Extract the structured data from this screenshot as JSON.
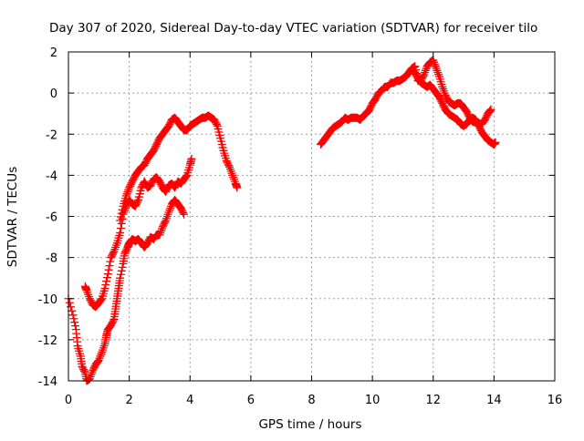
{
  "chart_data": {
    "type": "scatter",
    "title": "Day 307 of 2020, Sidereal Day-to-day VTEC variation (SDTVAR) for receiver tilo",
    "xlabel": "GPS time / hours",
    "ylabel": "SDTVAR / TECUs",
    "xlim": [
      0,
      16
    ],
    "ylim": [
      -14,
      2
    ],
    "xticks": [
      0,
      2,
      4,
      6,
      8,
      10,
      12,
      14,
      16
    ],
    "yticks": [
      -14,
      -12,
      -10,
      -8,
      -6,
      -4,
      -2,
      0,
      2
    ],
    "grid": true,
    "marker": "plus",
    "marker_color": "#ff0000",
    "series": [
      {
        "points": [
          [
            0.0,
            -10.0
          ],
          [
            0.15,
            -10.8
          ],
          [
            0.25,
            -11.5
          ],
          [
            0.3,
            -12.3
          ],
          [
            0.4,
            -12.8
          ],
          [
            0.45,
            -13.3
          ],
          [
            0.55,
            -13.6
          ],
          [
            0.6,
            -14.0
          ],
          [
            0.7,
            -13.9
          ],
          [
            0.8,
            -13.5
          ],
          [
            0.9,
            -13.2
          ],
          [
            1.0,
            -13.0
          ],
          [
            1.1,
            -12.6
          ],
          [
            1.2,
            -12.2
          ],
          [
            1.25,
            -11.8
          ],
          [
            1.3,
            -11.5
          ],
          [
            1.4,
            -11.3
          ],
          [
            1.5,
            -11.0
          ],
          [
            1.55,
            -10.5
          ],
          [
            1.6,
            -10.0
          ],
          [
            1.65,
            -9.5
          ],
          [
            1.7,
            -9.0
          ],
          [
            1.8,
            -8.3
          ],
          [
            1.85,
            -7.8
          ],
          [
            1.95,
            -7.5
          ],
          [
            2.0,
            -7.3
          ],
          [
            2.1,
            -7.1
          ],
          [
            2.2,
            -7.2
          ],
          [
            2.3,
            -7.1
          ],
          [
            2.4,
            -7.3
          ],
          [
            2.5,
            -7.5
          ],
          [
            2.6,
            -7.3
          ],
          [
            2.7,
            -7.0
          ],
          [
            2.8,
            -7.1
          ],
          [
            2.9,
            -6.9
          ],
          [
            3.0,
            -6.9
          ],
          [
            3.1,
            -6.5
          ],
          [
            3.2,
            -6.2
          ],
          [
            3.3,
            -5.8
          ],
          [
            3.4,
            -5.4
          ],
          [
            3.5,
            -5.2
          ],
          [
            3.6,
            -5.4
          ],
          [
            3.7,
            -5.6
          ],
          [
            3.8,
            -5.9
          ]
        ]
      },
      {
        "points": [
          [
            0.55,
            -9.4
          ],
          [
            0.6,
            -9.6
          ],
          [
            0.7,
            -10.0
          ],
          [
            0.8,
            -10.3
          ],
          [
            0.9,
            -10.4
          ],
          [
            1.0,
            -10.2
          ],
          [
            1.1,
            -10.0
          ],
          [
            1.2,
            -9.5
          ],
          [
            1.3,
            -8.8
          ],
          [
            1.4,
            -8.0
          ],
          [
            1.5,
            -7.7
          ],
          [
            1.6,
            -7.3
          ],
          [
            1.7,
            -6.8
          ],
          [
            1.8,
            -5.9
          ],
          [
            1.9,
            -5.5
          ],
          [
            2.0,
            -5.2
          ],
          [
            2.1,
            -5.4
          ],
          [
            2.2,
            -5.5
          ],
          [
            2.3,
            -5.2
          ],
          [
            2.4,
            -4.6
          ],
          [
            2.5,
            -4.3
          ],
          [
            2.6,
            -4.6
          ],
          [
            2.7,
            -4.5
          ],
          [
            2.8,
            -4.2
          ],
          [
            2.9,
            -4.1
          ],
          [
            3.0,
            -4.3
          ],
          [
            3.1,
            -4.6
          ],
          [
            3.2,
            -4.8
          ],
          [
            3.3,
            -4.5
          ],
          [
            3.4,
            -4.4
          ],
          [
            3.5,
            -4.6
          ],
          [
            3.6,
            -4.3
          ],
          [
            3.7,
            -4.4
          ],
          [
            3.8,
            -4.2
          ],
          [
            3.9,
            -4.0
          ],
          [
            4.0,
            -3.5
          ],
          [
            4.05,
            -3.2
          ]
        ]
      },
      {
        "points": [
          [
            1.7,
            -6.2
          ],
          [
            1.8,
            -5.5
          ],
          [
            1.9,
            -5.0
          ],
          [
            2.0,
            -4.6
          ],
          [
            2.1,
            -4.3
          ],
          [
            2.2,
            -4.0
          ],
          [
            2.3,
            -3.8
          ],
          [
            2.4,
            -3.6
          ],
          [
            2.5,
            -3.5
          ],
          [
            2.6,
            -3.2
          ],
          [
            2.7,
            -3.0
          ],
          [
            2.8,
            -2.8
          ],
          [
            2.9,
            -2.5
          ],
          [
            3.0,
            -2.2
          ],
          [
            3.1,
            -2.0
          ],
          [
            3.2,
            -1.8
          ],
          [
            3.3,
            -1.6
          ],
          [
            3.4,
            -1.3
          ],
          [
            3.5,
            -1.2
          ],
          [
            3.6,
            -1.4
          ],
          [
            3.7,
            -1.6
          ],
          [
            3.8,
            -1.8
          ],
          [
            3.9,
            -1.8
          ],
          [
            4.0,
            -1.6
          ],
          [
            4.1,
            -1.5
          ],
          [
            4.2,
            -1.4
          ],
          [
            4.3,
            -1.3
          ],
          [
            4.4,
            -1.2
          ],
          [
            4.5,
            -1.2
          ],
          [
            4.6,
            -1.1
          ],
          [
            4.7,
            -1.2
          ],
          [
            4.8,
            -1.3
          ],
          [
            4.9,
            -1.6
          ],
          [
            5.0,
            -2.2
          ],
          [
            5.1,
            -2.8
          ],
          [
            5.2,
            -3.3
          ],
          [
            5.3,
            -3.6
          ],
          [
            5.4,
            -4.0
          ],
          [
            5.5,
            -4.4
          ],
          [
            5.55,
            -4.6
          ]
        ]
      },
      {
        "points": [
          [
            8.3,
            -2.5
          ],
          [
            8.4,
            -2.3
          ],
          [
            8.5,
            -2.1
          ],
          [
            8.6,
            -1.9
          ],
          [
            8.7,
            -1.7
          ],
          [
            8.8,
            -1.6
          ],
          [
            8.9,
            -1.5
          ],
          [
            9.0,
            -1.4
          ],
          [
            9.1,
            -1.2
          ],
          [
            9.2,
            -1.3
          ],
          [
            9.3,
            -1.2
          ],
          [
            9.4,
            -1.2
          ],
          [
            9.5,
            -1.2
          ],
          [
            9.6,
            -1.3
          ],
          [
            9.7,
            -1.1
          ],
          [
            9.8,
            -1.0
          ],
          [
            9.9,
            -0.8
          ],
          [
            10.0,
            -0.5
          ],
          [
            10.1,
            -0.3
          ],
          [
            10.2,
            0.0
          ],
          [
            10.3,
            0.1
          ],
          [
            10.4,
            0.3
          ],
          [
            10.5,
            0.3
          ],
          [
            10.6,
            0.5
          ],
          [
            10.7,
            0.5
          ],
          [
            10.8,
            0.6
          ],
          [
            10.9,
            0.6
          ],
          [
            11.0,
            0.7
          ],
          [
            11.1,
            0.8
          ],
          [
            11.2,
            1.0
          ],
          [
            11.3,
            1.2
          ],
          [
            11.4,
            1.3
          ],
          [
            11.5,
            0.6
          ],
          [
            11.6,
            0.6
          ],
          [
            11.7,
            0.9
          ],
          [
            11.8,
            1.3
          ],
          [
            11.9,
            1.5
          ],
          [
            12.0,
            1.6
          ],
          [
            12.1,
            1.2
          ],
          [
            12.2,
            0.8
          ],
          [
            12.3,
            0.3
          ],
          [
            12.4,
            -0.1
          ],
          [
            12.5,
            -0.4
          ],
          [
            12.6,
            -0.5
          ],
          [
            12.7,
            -0.6
          ],
          [
            12.8,
            -0.5
          ],
          [
            12.9,
            -0.5
          ],
          [
            13.0,
            -0.7
          ],
          [
            13.1,
            -0.9
          ],
          [
            13.2,
            -1.2
          ],
          [
            13.3,
            -1.4
          ],
          [
            13.4,
            -1.4
          ],
          [
            13.5,
            -1.5
          ],
          [
            13.6,
            -1.5
          ],
          [
            13.7,
            -1.3
          ],
          [
            13.8,
            -1.0
          ],
          [
            13.9,
            -0.8
          ]
        ]
      },
      {
        "points": [
          [
            11.3,
            1.1
          ],
          [
            11.4,
            1.0
          ],
          [
            11.5,
            0.7
          ],
          [
            11.6,
            0.5
          ],
          [
            11.7,
            0.4
          ],
          [
            11.8,
            0.3
          ],
          [
            11.9,
            0.4
          ],
          [
            12.0,
            0.2
          ],
          [
            12.1,
            0.0
          ],
          [
            12.2,
            -0.2
          ],
          [
            12.3,
            -0.5
          ],
          [
            12.4,
            -0.8
          ],
          [
            12.5,
            -1.0
          ],
          [
            12.6,
            -1.1
          ],
          [
            12.7,
            -1.2
          ],
          [
            12.8,
            -1.3
          ],
          [
            12.9,
            -1.5
          ],
          [
            13.0,
            -1.6
          ],
          [
            13.1,
            -1.5
          ],
          [
            13.2,
            -1.3
          ],
          [
            13.3,
            -1.2
          ],
          [
            13.4,
            -1.3
          ],
          [
            13.5,
            -1.6
          ],
          [
            13.6,
            -1.9
          ],
          [
            13.7,
            -2.1
          ],
          [
            13.8,
            -2.3
          ],
          [
            13.9,
            -2.4
          ],
          [
            14.0,
            -2.5
          ],
          [
            14.05,
            -2.4
          ]
        ]
      }
    ]
  }
}
